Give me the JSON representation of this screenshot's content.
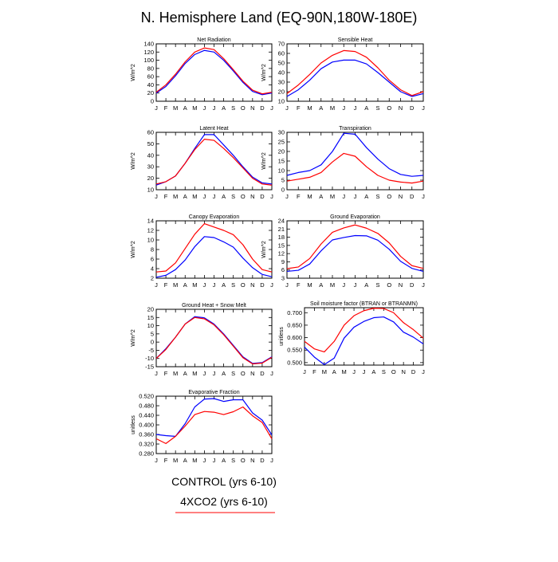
{
  "figure_title": "N. Hemisphere Land (EQ-90N,180W-180E)",
  "legend": {
    "control_label": "CONTROL (yrs 6-10)",
    "control_color": "#0000ff",
    "co2_label": "4XCO2 (yrs 6-10)",
    "co2_color": "#ff0000"
  },
  "chart_data": [
    {
      "type": "line",
      "title": "Net Radiation",
      "ylabel": "W/m^2",
      "categories": [
        "J",
        "F",
        "M",
        "A",
        "M",
        "J",
        "J",
        "A",
        "S",
        "O",
        "N",
        "D",
        "J"
      ],
      "ylim": [
        0,
        140
      ],
      "yticks": [
        "0",
        "20",
        "40",
        "60",
        "80",
        "100",
        "120",
        "140"
      ],
      "series": [
        {
          "name": "CONTROL (yrs 6-10)",
          "color": "#0000ff",
          "values": [
            20,
            36,
            62,
            92,
            114,
            124,
            120,
            100,
            74,
            46,
            24,
            16,
            20
          ]
        },
        {
          "name": "4XCO2 (yrs 6-10)",
          "color": "#ff0000",
          "values": [
            22,
            40,
            66,
            96,
            120,
            130,
            126,
            104,
            77,
            49,
            27,
            18,
            22
          ]
        }
      ]
    },
    {
      "type": "line",
      "title": "Sensible Heat",
      "ylabel": "W/m^2",
      "categories": [
        "J",
        "F",
        "M",
        "A",
        "M",
        "J",
        "J",
        "A",
        "S",
        "O",
        "N",
        "D",
        "J"
      ],
      "ylim": [
        10,
        70
      ],
      "yticks": [
        "10",
        "20",
        "30",
        "40",
        "50",
        "60",
        "70"
      ],
      "series": [
        {
          "name": "CONTROL (yrs 6-10)",
          "color": "#0000ff",
          "values": [
            15,
            22,
            32,
            44,
            51,
            53,
            53,
            49,
            40,
            30,
            20,
            15,
            18
          ]
        },
        {
          "name": "4XCO2 (yrs 6-10)",
          "color": "#ff0000",
          "values": [
            18,
            27,
            38,
            50,
            58,
            63,
            62,
            56,
            45,
            32,
            22,
            16,
            20
          ]
        }
      ]
    },
    {
      "type": "line",
      "title": "Latent Heat",
      "ylabel": "W/m^2",
      "categories": [
        "J",
        "F",
        "M",
        "A",
        "M",
        "J",
        "J",
        "A",
        "S",
        "O",
        "N",
        "D",
        "J"
      ],
      "ylim": [
        10,
        60
      ],
      "yticks": [
        "10",
        "20",
        "30",
        "40",
        "50",
        "60"
      ],
      "series": [
        {
          "name": "CONTROL (yrs 6-10)",
          "color": "#0000ff",
          "values": [
            14,
            17,
            22,
            33,
            46,
            58,
            58,
            49,
            40,
            30,
            21,
            16,
            15
          ]
        },
        {
          "name": "4XCO2 (yrs 6-10)",
          "color": "#ff0000",
          "values": [
            15,
            17,
            22,
            33,
            45,
            54,
            53,
            46,
            38,
            29,
            20,
            15,
            14
          ]
        }
      ]
    },
    {
      "type": "line",
      "title": "Transpiration",
      "ylabel": "W/m^2",
      "categories": [
        "J",
        "F",
        "M",
        "A",
        "M",
        "J",
        "J",
        "A",
        "S",
        "O",
        "N",
        "D",
        "J"
      ],
      "ylim": [
        0,
        30
      ],
      "yticks": [
        "0",
        "5",
        "10",
        "15",
        "20",
        "25",
        "30"
      ],
      "series": [
        {
          "name": "CONTROL (yrs 6-10)",
          "color": "#0000ff",
          "values": [
            7.5,
            9,
            10,
            13,
            20,
            29.5,
            29,
            22,
            16,
            11,
            8,
            7,
            7.5
          ]
        },
        {
          "name": "4XCO2 (yrs 6-10)",
          "color": "#ff0000",
          "values": [
            4.5,
            5.5,
            6.5,
            9,
            14.5,
            19,
            17.5,
            12,
            7.5,
            5,
            4,
            3.5,
            4.5
          ]
        }
      ]
    },
    {
      "type": "line",
      "title": "Canopy Evaporation",
      "ylabel": "W/m^2",
      "categories": [
        "J",
        "F",
        "M",
        "A",
        "M",
        "J",
        "J",
        "A",
        "S",
        "O",
        "N",
        "D",
        "J"
      ],
      "ylim": [
        2,
        14
      ],
      "yticks": [
        "2",
        "4",
        "6",
        "8",
        "10",
        "12",
        "14"
      ],
      "series": [
        {
          "name": "CONTROL (yrs 6-10)",
          "color": "#0000ff",
          "values": [
            2.2,
            2.6,
            3.8,
            5.8,
            8.6,
            10.7,
            10.5,
            9.6,
            8.5,
            6.2,
            4.2,
            2.8,
            2.3
          ]
        },
        {
          "name": "4XCO2 (yrs 6-10)",
          "color": "#ff0000",
          "values": [
            3.3,
            3.5,
            5.2,
            8.2,
            11.2,
            13.4,
            12.7,
            12.0,
            11.1,
            9.0,
            6.0,
            3.8,
            3.3
          ]
        }
      ]
    },
    {
      "type": "line",
      "title": "Ground Evaporation",
      "ylabel": "W/m^2",
      "categories": [
        "J",
        "F",
        "M",
        "A",
        "M",
        "J",
        "J",
        "A",
        "S",
        "O",
        "N",
        "D",
        "J"
      ],
      "ylim": [
        3,
        24
      ],
      "yticks": [
        "3",
        "6",
        "9",
        "12",
        "15",
        "18",
        "21",
        "24"
      ],
      "series": [
        {
          "name": "CONTROL (yrs 6-10)",
          "color": "#0000ff",
          "values": [
            5.5,
            5.9,
            8.2,
            13.0,
            17.0,
            17.9,
            18.6,
            18.5,
            16.9,
            13.6,
            9.2,
            6.6,
            5.5
          ]
        },
        {
          "name": "4XCO2 (yrs 6-10)",
          "color": "#ff0000",
          "values": [
            6.5,
            7.1,
            10.2,
            15.5,
            19.8,
            21.4,
            22.5,
            21.3,
            19.4,
            15.9,
            11.0,
            7.6,
            6.6
          ]
        }
      ]
    },
    {
      "type": "line",
      "title": "Ground Heat + Snow Melt",
      "ylabel": "W/m^2",
      "categories": [
        "J",
        "F",
        "M",
        "A",
        "M",
        "J",
        "J",
        "A",
        "S",
        "O",
        "N",
        "D",
        "J"
      ],
      "ylim": [
        -15,
        20
      ],
      "yticks": [
        "-15",
        "-10",
        "-5",
        "0",
        "5",
        "10",
        "15",
        "20"
      ],
      "series": [
        {
          "name": "CONTROL (yrs 6-10)",
          "color": "#0000ff",
          "values": [
            -10,
            -4,
            3,
            11,
            15.5,
            14.8,
            11,
            5,
            -2,
            -9,
            -13,
            -12.5,
            -9
          ]
        },
        {
          "name": "4XCO2 (yrs 6-10)",
          "color": "#ff0000",
          "values": [
            -10,
            -4.5,
            3,
            11,
            15,
            14.2,
            10.5,
            4.5,
            -2.5,
            -9.5,
            -13.3,
            -12.8,
            -9.3
          ]
        }
      ]
    },
    {
      "type": "line",
      "title": "Soil moisture factor (BTRAN or BTRANMN)",
      "ylabel": "unitless",
      "categories": [
        "J",
        "F",
        "M",
        "A",
        "M",
        "J",
        "J",
        "A",
        "S",
        "O",
        "N",
        "D",
        "J"
      ],
      "ylim": [
        0.49,
        0.72
      ],
      "yticks": [
        "0.500",
        "0.550",
        "0.600",
        "0.650",
        "0.700"
      ],
      "series": [
        {
          "name": "CONTROL (yrs 6-10)",
          "color": "#0000ff",
          "values": [
            0.562,
            0.522,
            0.492,
            0.518,
            0.598,
            0.642,
            0.665,
            0.68,
            0.683,
            0.663,
            0.622,
            0.602,
            0.575
          ]
        },
        {
          "name": "4XCO2 (yrs 6-10)",
          "color": "#ff0000",
          "values": [
            0.585,
            0.555,
            0.543,
            0.585,
            0.65,
            0.688,
            0.708,
            0.718,
            0.717,
            0.7,
            0.66,
            0.632,
            0.598
          ]
        }
      ]
    },
    {
      "type": "line",
      "title": "Evaporative Fraction",
      "ylabel": "unitless",
      "categories": [
        "J",
        "F",
        "M",
        "A",
        "M",
        "J",
        "J",
        "A",
        "S",
        "O",
        "N",
        "D",
        "J"
      ],
      "ylim": [
        0.28,
        0.52
      ],
      "yticks": [
        "0.280",
        "0.320",
        "0.360",
        "0.400",
        "0.440",
        "0.480",
        "0.520"
      ],
      "series": [
        {
          "name": "CONTROL (yrs 6-10)",
          "color": "#0000ff",
          "values": [
            0.36,
            0.355,
            0.352,
            0.405,
            0.475,
            0.508,
            0.51,
            0.498,
            0.505,
            0.505,
            0.45,
            0.42,
            0.358
          ]
        },
        {
          "name": "4XCO2 (yrs 6-10)",
          "color": "#ff0000",
          "values": [
            0.342,
            0.322,
            0.352,
            0.395,
            0.443,
            0.456,
            0.453,
            0.443,
            0.455,
            0.475,
            0.438,
            0.41,
            0.342
          ]
        }
      ]
    }
  ]
}
